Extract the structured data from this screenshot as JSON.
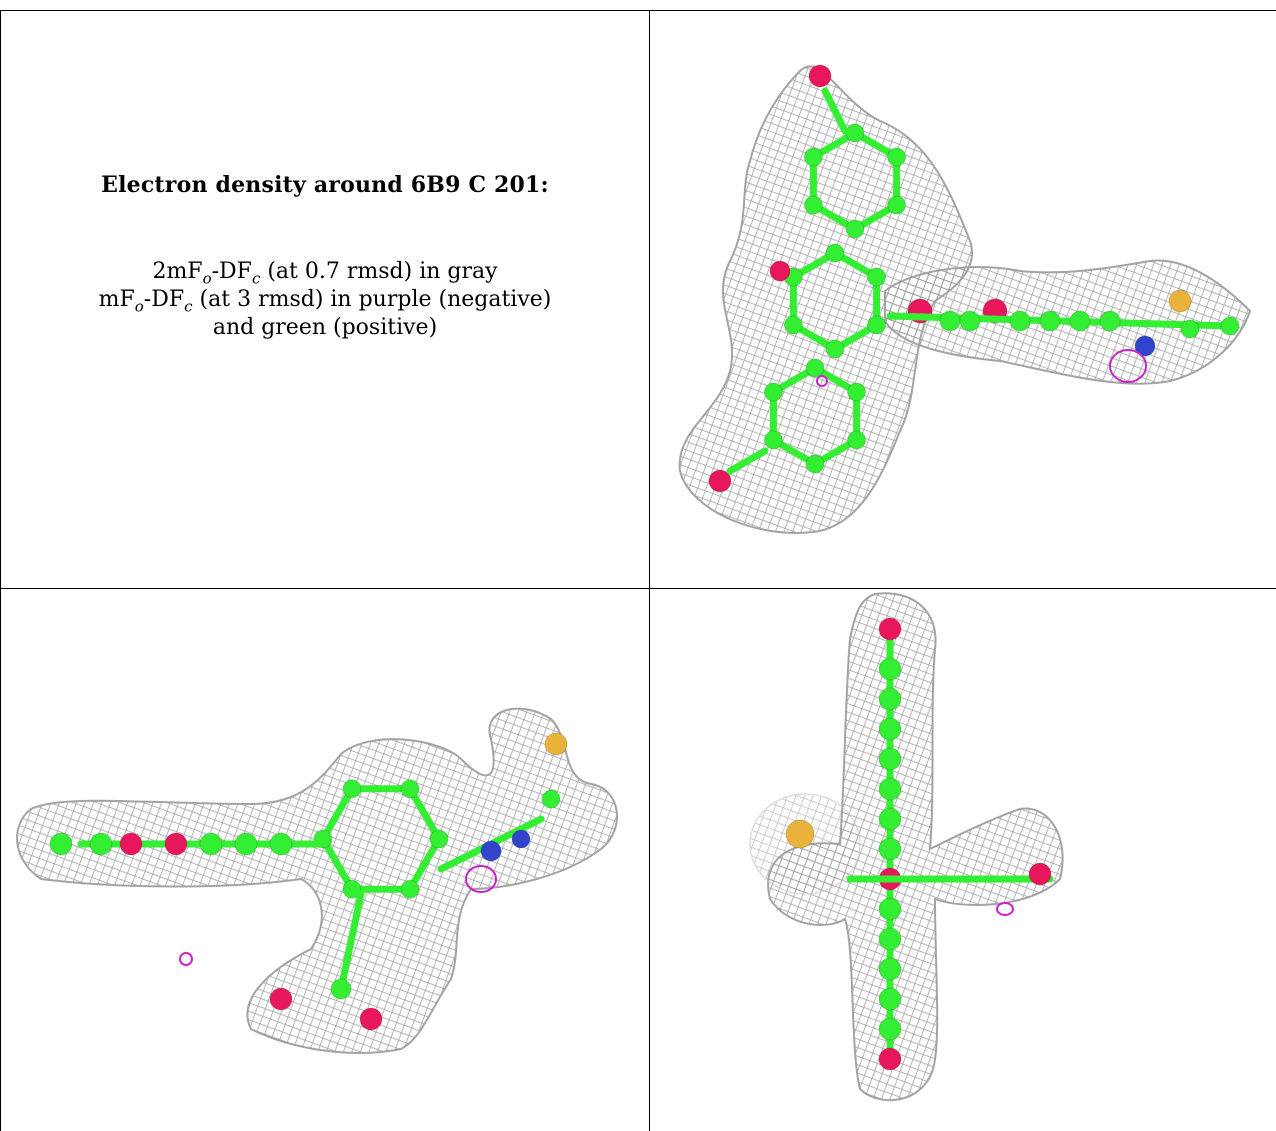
{
  "caption": {
    "title": "Electron density around 6B9 C 201:",
    "line1_prefix": "2mF",
    "line1_sub1": "o",
    "line1_mid": "-DF",
    "line1_sub2": "c",
    "line1_suffix": " (at 0.7 rmsd) in gray",
    "line2_prefix": "mF",
    "line2_sub1": "o",
    "line2_mid": "-DF",
    "line2_sub2": "c",
    "line2_suffix": " (at 3 rmsd) in purple (negative)",
    "line3": "and green (positive)"
  },
  "colors": {
    "mesh_gray": "#9a9a9a",
    "carbon_green": "#33ee33",
    "oxygen_red": "#e8165a",
    "nitrogen_blue": "#3344cc",
    "sulfur_yellow": "#e9b23a",
    "negative_purple": "#cc22cc",
    "grid_line": "#000000"
  },
  "panels": [
    {
      "name": "view-top-right"
    },
    {
      "name": "view-bottom-left"
    },
    {
      "name": "view-bottom-right"
    }
  ]
}
